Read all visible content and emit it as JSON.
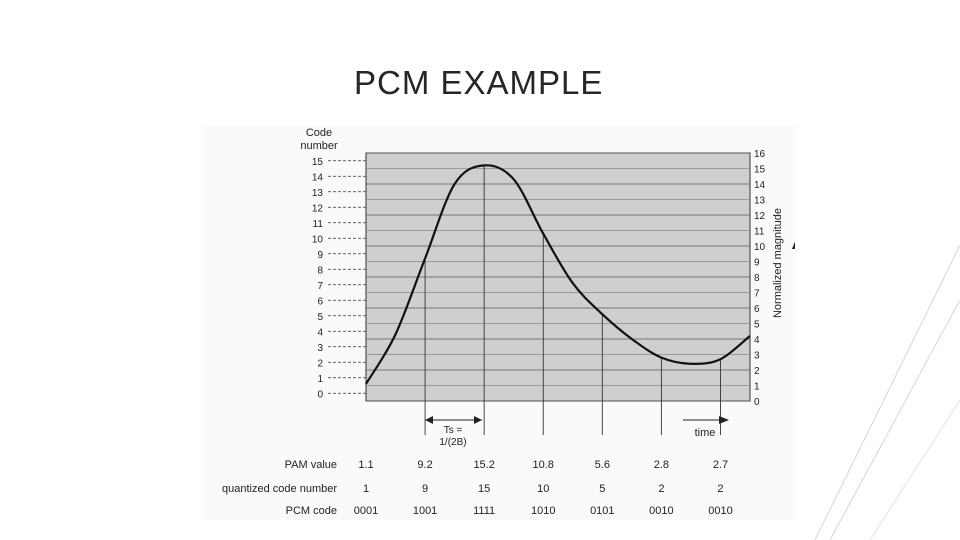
{
  "slide": {
    "title": "PCM EXAMPLE"
  },
  "figure": {
    "left_axis_title_line1": "Code",
    "left_axis_title_line2": "number",
    "right_axis_title": "Normalized magnitude",
    "ts_label_line1": "Ts =",
    "ts_label_line2": "1/(2B)",
    "time_label": "time",
    "code_ticks": [
      "0",
      "1",
      "2",
      "3",
      "4",
      "5",
      "6",
      "7",
      "8",
      "9",
      "10",
      "11",
      "12",
      "13",
      "14",
      "15"
    ],
    "magnitude_ticks": [
      "0",
      "1",
      "2",
      "3",
      "4",
      "5",
      "6",
      "7",
      "8",
      "9",
      "10",
      "11",
      "12",
      "13",
      "14",
      "15",
      "16"
    ]
  },
  "chart_data": {
    "type": "line",
    "xlabel": "time",
    "ylabel": "Normalized magnitude",
    "ylim": [
      0,
      16
    ],
    "code_range": [
      0,
      15
    ],
    "signal": {
      "t": [
        0,
        0.5,
        1,
        1.5,
        2,
        2.5,
        3,
        3.5,
        4,
        4.5,
        5,
        5.5,
        6,
        6.5
      ],
      "y": [
        1.1,
        4.3,
        9.2,
        14.0,
        15.2,
        14.3,
        10.8,
        7.6,
        5.6,
        4.0,
        2.8,
        2.4,
        2.7,
        4.2
      ]
    },
    "samples": {
      "t": [
        1,
        2,
        3,
        4,
        5,
        6
      ],
      "pam": [
        9.2,
        15.2,
        10.8,
        5.6,
        2.8,
        2.7
      ]
    },
    "table": {
      "rows": [
        {
          "label": "PAM value",
          "values": [
            "1.1",
            "9.2",
            "15.2",
            "10.8",
            "5.6",
            "2.8",
            "2.7"
          ]
        },
        {
          "label": "quantized code number",
          "values": [
            "1",
            "9",
            "15",
            "10",
            "5",
            "2",
            "2"
          ]
        },
        {
          "label": "PCM code",
          "values": [
            "0001",
            "1001",
            "1111",
            "1010",
            "0101",
            "0010",
            "0010"
          ]
        }
      ]
    }
  }
}
